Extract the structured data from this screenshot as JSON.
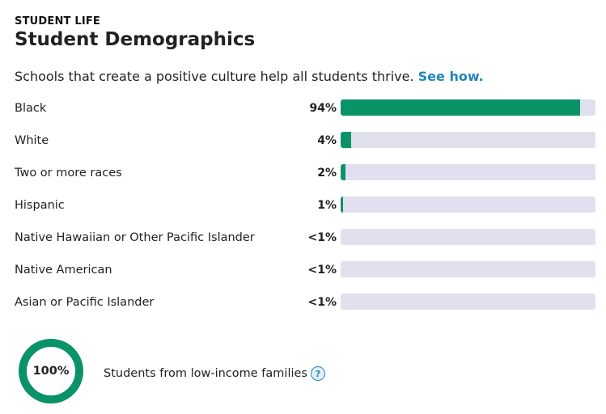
{
  "section": {
    "eyebrow": "STUDENT LIFE",
    "title": "Student Demographics",
    "intro_text": "Schools that create a positive culture help all students thrive.",
    "intro_link": "See how."
  },
  "demographics": [
    {
      "label": "Black",
      "pct_text": "94%",
      "value": 94
    },
    {
      "label": "White",
      "pct_text": "4%",
      "value": 4
    },
    {
      "label": "Two or more races",
      "pct_text": "2%",
      "value": 2
    },
    {
      "label": "Hispanic",
      "pct_text": "1%",
      "value": 1
    },
    {
      "label": "Native Hawaiian or Other Pacific Islander",
      "pct_text": "<1%",
      "value": 0
    },
    {
      "label": "Native American",
      "pct_text": "<1%",
      "value": 0
    },
    {
      "label": "Asian or Pacific Islander",
      "pct_text": "<1%",
      "value": 0
    }
  ],
  "low_income": {
    "pct_text": "100%",
    "value": 100,
    "label": "Students from low-income families",
    "help_icon": "question-mark-icon"
  },
  "colors": {
    "bar_fill": "#0b9368",
    "bar_track": "#e0e0ee",
    "link": "#2386b5"
  }
}
